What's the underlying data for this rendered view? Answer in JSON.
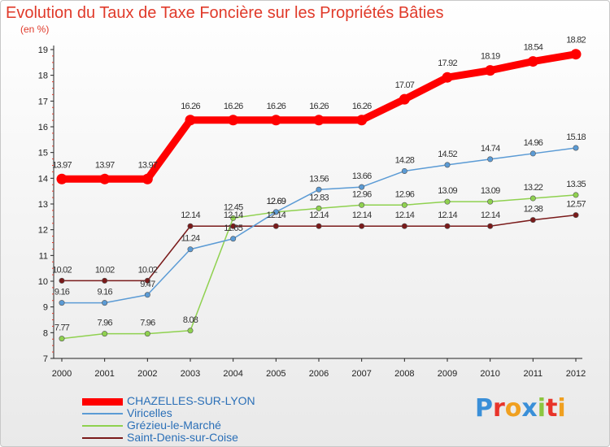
{
  "chart_data": {
    "type": "line",
    "title": "Evolution du Taux de Taxe Foncière sur les Propriétés Bâties",
    "subtitle": "(en %)",
    "x": [
      "2000",
      "2001",
      "2002",
      "2003",
      "2004",
      "2005",
      "2006",
      "2007",
      "2008",
      "2009",
      "2010",
      "2011",
      "2012"
    ],
    "ylim": [
      7,
      19
    ],
    "yticks": [
      "7",
      "8",
      "9",
      "10",
      "11",
      "12",
      "13",
      "14",
      "15",
      "16",
      "17",
      "18",
      "19"
    ],
    "series": [
      {
        "name": "CHAZELLES-SUR-LYON",
        "color": "#ff0000",
        "values": [
          13.97,
          13.97,
          13.97,
          16.26,
          16.26,
          16.26,
          16.26,
          16.26,
          17.07,
          17.92,
          18.19,
          18.54,
          18.82
        ],
        "labels": [
          "13.97",
          "13.97",
          "13.97",
          "16.26",
          "16.26",
          "16.26",
          "16.26",
          "16.26",
          "17.07",
          "17.92",
          "18.19",
          "18.54",
          "18.82"
        ]
      },
      {
        "name": "Viricelles",
        "color": "#5b9bd5",
        "values": [
          9.16,
          9.16,
          9.47,
          11.24,
          11.65,
          12.69,
          13.56,
          13.66,
          14.28,
          14.52,
          14.74,
          14.96,
          15.18
        ],
        "labels": [
          "9.16",
          "9.16",
          "9.47",
          "11.24",
          "11.65",
          "12.69",
          "13.56",
          "13.66",
          "14.28",
          "14.52",
          "14.74",
          "14.96",
          "15.18"
        ]
      },
      {
        "name": "Grézieu-le-Marché",
        "color": "#8fd14f",
        "values": [
          7.77,
          7.96,
          7.96,
          8.08,
          12.45,
          12.69,
          12.83,
          12.96,
          12.96,
          13.09,
          13.09,
          13.22,
          13.35
        ],
        "labels": [
          "7.77",
          "7.96",
          "7.96",
          "8.08",
          "12.45",
          "12.69",
          "12.83",
          "12.96",
          "12.96",
          "13.09",
          "13.09",
          "13.22",
          "13.35"
        ]
      },
      {
        "name": "Saint-Denis-sur-Coise",
        "color": "#7a1a1a",
        "values": [
          10.02,
          10.02,
          10.02,
          12.14,
          12.14,
          12.14,
          12.14,
          12.14,
          12.14,
          12.14,
          12.14,
          12.38,
          12.57
        ],
        "labels": [
          "10.02",
          "10.02",
          "10.02",
          "12.14",
          "12.14",
          "12.14",
          "12.14",
          "12.14",
          "12.14",
          "12.14",
          "12.14",
          "12.38",
          "12.57"
        ]
      }
    ],
    "legend_position": "bottom-left",
    "grid": false
  },
  "logo": {
    "text": "Proxiti",
    "letters": [
      "P",
      "r",
      "o",
      "x",
      "i",
      "t",
      "i"
    ],
    "colors": [
      "#3a8fd8",
      "#e8342a",
      "#f0a020",
      "#3a8fd8",
      "#8cc63f",
      "#e8342a",
      "#f0a020"
    ]
  }
}
